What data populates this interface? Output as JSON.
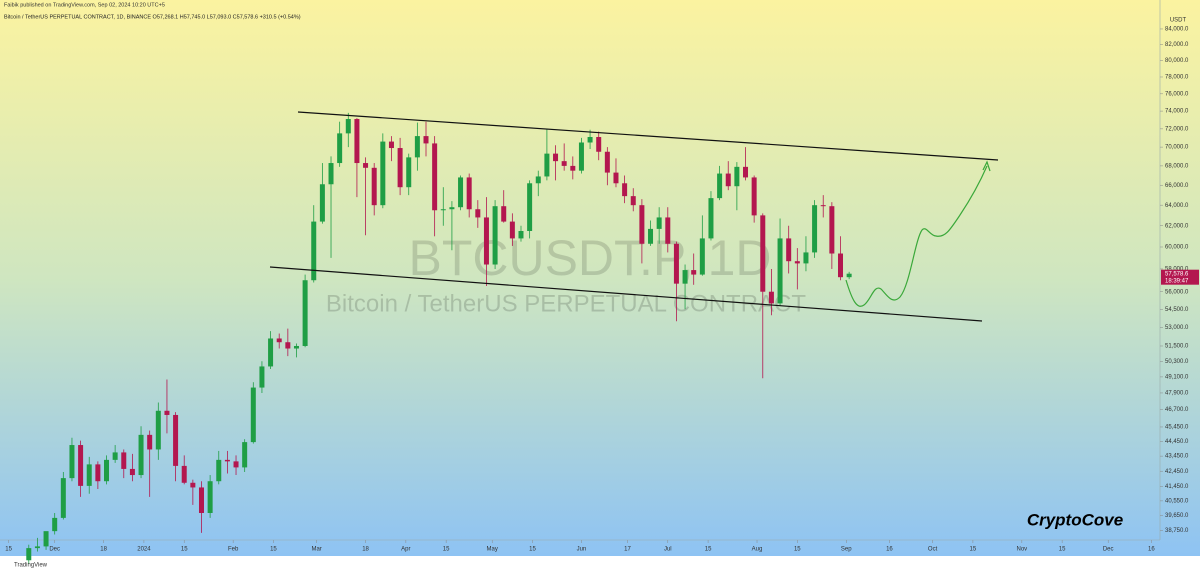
{
  "chart_data": {
    "type": "candlestick",
    "header": "Faibik published on TradingView.com, Sep 02, 2024 10:20 UTC+5",
    "legend": "Bitcoin / TetherUS PERPETUAL CONTRACT, 1D, BINANCE  O57,268.1 H57,745.0 L57,093.0 C57,578.6 +310.5 (+0.54%)",
    "watermark": "BTCUSDT.P, 1D",
    "watermark_subtitle": "Bitcoin / TetherUS PERPETUAL CONTRACT",
    "signature": "CryptoCove",
    "footer": "TradingView",
    "currency": "USDT",
    "price_label": {
      "value": 57578.6,
      "label": "57,578.6"
    },
    "countdown": "18:39:47",
    "log_scale": true,
    "grid": false,
    "up_color": "#1f9e45",
    "down_color": "#b3174f",
    "x": [
      "2023-11-22",
      "2023-11-25",
      "2023-11-28",
      "2023-12-01",
      "2023-12-04",
      "2023-12-07",
      "2023-12-10",
      "2023-12-13",
      "2023-12-16",
      "2023-12-19",
      "2023-12-22",
      "2023-12-25",
      "2023-12-28",
      "2023-12-31",
      "2024-01-03",
      "2024-01-06",
      "2024-01-09",
      "2024-01-12",
      "2024-01-15",
      "2024-01-18",
      "2024-01-21",
      "2024-01-24",
      "2024-01-27",
      "2024-01-30",
      "2024-02-02",
      "2024-02-05",
      "2024-02-08",
      "2024-02-11",
      "2024-02-14",
      "2024-02-17",
      "2024-02-20",
      "2024-02-23",
      "2024-02-26",
      "2024-02-29",
      "2024-03-03",
      "2024-03-06",
      "2024-03-09",
      "2024-03-12",
      "2024-03-15",
      "2024-03-18",
      "2024-03-21",
      "2024-03-24",
      "2024-03-27",
      "2024-03-30",
      "2024-04-02",
      "2024-04-05",
      "2024-04-08",
      "2024-04-11",
      "2024-04-14",
      "2024-04-17",
      "2024-04-20",
      "2024-04-23",
      "2024-04-26",
      "2024-04-29",
      "2024-05-02",
      "2024-05-05",
      "2024-05-08",
      "2024-05-11",
      "2024-05-14",
      "2024-05-17",
      "2024-05-20",
      "2024-05-23",
      "2024-05-26",
      "2024-05-29",
      "2024-06-01",
      "2024-06-04",
      "2024-06-07",
      "2024-06-10",
      "2024-06-13",
      "2024-06-16",
      "2024-06-19",
      "2024-06-22",
      "2024-06-25",
      "2024-06-28",
      "2024-07-01",
      "2024-07-04",
      "2024-07-07",
      "2024-07-10",
      "2024-07-13",
      "2024-07-16",
      "2024-07-19",
      "2024-07-22",
      "2024-07-25",
      "2024-07-28",
      "2024-07-31",
      "2024-08-03",
      "2024-08-06",
      "2024-08-09",
      "2024-08-12",
      "2024-08-15",
      "2024-08-18",
      "2024-08-21",
      "2024-08-24",
      "2024-08-27",
      "2024-08-30",
      "2024-09-02"
    ],
    "open": [
      37000,
      37700,
      37800,
      38700,
      39500,
      42000,
      44200,
      41500,
      42900,
      41800,
      43200,
      43700,
      42600,
      42200,
      44900,
      43900,
      46600,
      46300,
      42800,
      41700,
      41400,
      39800,
      41800,
      43200,
      43100,
      42700,
      44400,
      48300,
      49900,
      52100,
      51800,
      51300,
      51500,
      57000,
      62400,
      66100,
      68300,
      71500,
      73100,
      68300,
      67800,
      64000,
      70600,
      69900,
      65800,
      68900,
      71200,
      70400,
      63500,
      63600,
      63800,
      66800,
      63600,
      62800,
      58400,
      63900,
      62400,
      60800,
      61500,
      66200,
      66900,
      69300,
      68500,
      68000,
      67500,
      70500,
      71100,
      69500,
      67300,
      66200,
      64900,
      64000,
      60300,
      61700,
      62800,
      60300,
      56700,
      57900,
      57500,
      60800,
      64700,
      67200,
      65900,
      67900,
      66800,
      63000,
      56000,
      55000,
      60800,
      58700,
      58500,
      59500,
      64000,
      63900,
      59400,
      57268.1
    ],
    "high": [
      37900,
      38300,
      38500,
      39800,
      42400,
      44700,
      44500,
      43400,
      43100,
      43500,
      44200,
      43900,
      43600,
      45500,
      45200,
      47200,
      48900,
      46500,
      43500,
      41900,
      41800,
      42200,
      43800,
      43800,
      43500,
      44600,
      48700,
      50300,
      52700,
      52500,
      52900,
      51700,
      57500,
      64000,
      68300,
      69000,
      72800,
      73800,
      73200,
      68900,
      68300,
      71500,
      71200,
      71000,
      69300,
      72700,
      72800,
      71200,
      65800,
      64400,
      67000,
      67200,
      64500,
      64800,
      64500,
      65500,
      63200,
      62000,
      66500,
      67500,
      72000,
      70200,
      70400,
      69000,
      71000,
      71900,
      71700,
      70000,
      68800,
      67000,
      65700,
      64600,
      62500,
      63800,
      63800,
      60500,
      58400,
      59400,
      63000,
      65400,
      68000,
      68500,
      68400,
      70000,
      67000,
      63200,
      58000,
      62700,
      62000,
      59900,
      61000,
      64500,
      65000,
      64300,
      61000,
      57745.0
    ],
    "low": [
      36800,
      37500,
      37600,
      38500,
      39400,
      41800,
      40800,
      41000,
      41300,
      41600,
      43000,
      42000,
      41800,
      42000,
      40800,
      43200,
      45000,
      41800,
      41600,
      40300,
      38600,
      39500,
      41600,
      42300,
      42200,
      42400,
      44300,
      47900,
      49700,
      51300,
      50700,
      50600,
      51400,
      56800,
      62200,
      59000,
      67900,
      70000,
      64800,
      61100,
      63000,
      63700,
      68500,
      65000,
      65000,
      67500,
      69000,
      61000,
      62000,
      59700,
      63500,
      62800,
      61800,
      56500,
      58000,
      62300,
      60100,
      60500,
      60800,
      64900,
      66500,
      66500,
      67500,
      66600,
      67200,
      69800,
      68600,
      66000,
      65800,
      64200,
      63400,
      58500,
      60100,
      60300,
      59500,
      53500,
      54500,
      56600,
      57400,
      60600,
      64500,
      65500,
      63500,
      66500,
      62300,
      49000,
      54000,
      54800,
      57600,
      56200,
      57800,
      59000,
      62800,
      58000,
      57000,
      57093.0
    ],
    "close": [
      37700,
      37800,
      38700,
      39500,
      42000,
      44200,
      41500,
      42900,
      41800,
      43200,
      43700,
      42600,
      42200,
      44900,
      43900,
      46600,
      46300,
      42800,
      41700,
      41400,
      39800,
      41800,
      43200,
      43100,
      42700,
      44400,
      48300,
      49900,
      52100,
      51800,
      51300,
      51500,
      57000,
      62400,
      66100,
      68300,
      71500,
      73100,
      68300,
      67800,
      64000,
      70600,
      69900,
      65800,
      68900,
      71200,
      70400,
      63500,
      63600,
      63800,
      66800,
      63600,
      62800,
      58400,
      63900,
      62400,
      60800,
      61500,
      66200,
      66900,
      69300,
      68500,
      68000,
      67500,
      70500,
      71100,
      69500,
      67300,
      66200,
      64900,
      64000,
      60300,
      61700,
      62800,
      60300,
      56700,
      57900,
      57500,
      60800,
      64700,
      67200,
      65900,
      67900,
      66800,
      63000,
      56000,
      55000,
      60800,
      58700,
      58500,
      59500,
      64000,
      63900,
      59400,
      57268.1,
      57578.6
    ],
    "xlim": [
      "2023-11-12",
      "2024-12-19"
    ],
    "xticks": [
      {
        "value": "2023-11-15",
        "label": "15"
      },
      {
        "value": "2023-12-01",
        "label": "Dec"
      },
      {
        "value": "2023-12-18",
        "label": "18"
      },
      {
        "value": "2024-01-01",
        "label": "2024"
      },
      {
        "value": "2024-01-15",
        "label": "15"
      },
      {
        "value": "2024-02-01",
        "label": "Feb"
      },
      {
        "value": "2024-02-15",
        "label": "15"
      },
      {
        "value": "2024-03-01",
        "label": "Mar"
      },
      {
        "value": "2024-03-18",
        "label": "18"
      },
      {
        "value": "2024-04-01",
        "label": "Apr"
      },
      {
        "value": "2024-04-15",
        "label": "15"
      },
      {
        "value": "2024-05-01",
        "label": "May"
      },
      {
        "value": "2024-05-15",
        "label": "15"
      },
      {
        "value": "2024-06-01",
        "label": "Jun"
      },
      {
        "value": "2024-06-17",
        "label": "17"
      },
      {
        "value": "2024-07-01",
        "label": "Jul"
      },
      {
        "value": "2024-07-15",
        "label": "15"
      },
      {
        "value": "2024-08-01",
        "label": "Aug"
      },
      {
        "value": "2024-08-15",
        "label": "15"
      },
      {
        "value": "2024-09-01",
        "label": "Sep"
      },
      {
        "value": "2024-09-16",
        "label": "16"
      },
      {
        "value": "2024-10-01",
        "label": "Oct"
      },
      {
        "value": "2024-10-15",
        "label": "15"
      },
      {
        "value": "2024-11-01",
        "label": "Nov"
      },
      {
        "value": "2024-11-15",
        "label": "15"
      },
      {
        "value": "2024-12-01",
        "label": "Dec"
      },
      {
        "value": "2024-12-16",
        "label": "16"
      }
    ],
    "ylim": [
      38175,
      87840
    ],
    "yticks": [
      {
        "value": 84000,
        "label": "84,000.0"
      },
      {
        "value": 82000,
        "label": "82,000.0"
      },
      {
        "value": 80000,
        "label": "80,000.0"
      },
      {
        "value": 78000,
        "label": "78,000.0"
      },
      {
        "value": 76000,
        "label": "76,000.0"
      },
      {
        "value": 74000,
        "label": "74,000.0"
      },
      {
        "value": 72000,
        "label": "72,000.0"
      },
      {
        "value": 70000,
        "label": "70,000.0"
      },
      {
        "value": 68000,
        "label": "68,000.0"
      },
      {
        "value": 66000,
        "label": "66,000.0"
      },
      {
        "value": 64000,
        "label": "64,000.0"
      },
      {
        "value": 62000,
        "label": "62,000.0"
      },
      {
        "value": 60000,
        "label": "60,000.0"
      },
      {
        "value": 58000,
        "label": "58,000.0"
      },
      {
        "value": 56000,
        "label": "56,000.0"
      },
      {
        "value": 54500,
        "label": "54,500.0"
      },
      {
        "value": 53000,
        "label": "53,000.0"
      },
      {
        "value": 51500,
        "label": "51,500.0"
      },
      {
        "value": 50300,
        "label": "50,300.0"
      },
      {
        "value": 49100,
        "label": "49,100.0"
      },
      {
        "value": 47900,
        "label": "47,900.0"
      },
      {
        "value": 46700,
        "label": "46,700.0"
      },
      {
        "value": 45450,
        "label": "45,450.0"
      },
      {
        "value": 44450,
        "label": "44,450.0"
      },
      {
        "value": 43450,
        "label": "43,450.0"
      },
      {
        "value": 42450,
        "label": "42,450.0"
      },
      {
        "value": 41450,
        "label": "41,450.0"
      },
      {
        "value": 40550,
        "label": "40,550.0"
      },
      {
        "value": 39650,
        "label": "39,650.0"
      },
      {
        "value": 38750,
        "label": "38,750.0"
      }
    ]
  }
}
